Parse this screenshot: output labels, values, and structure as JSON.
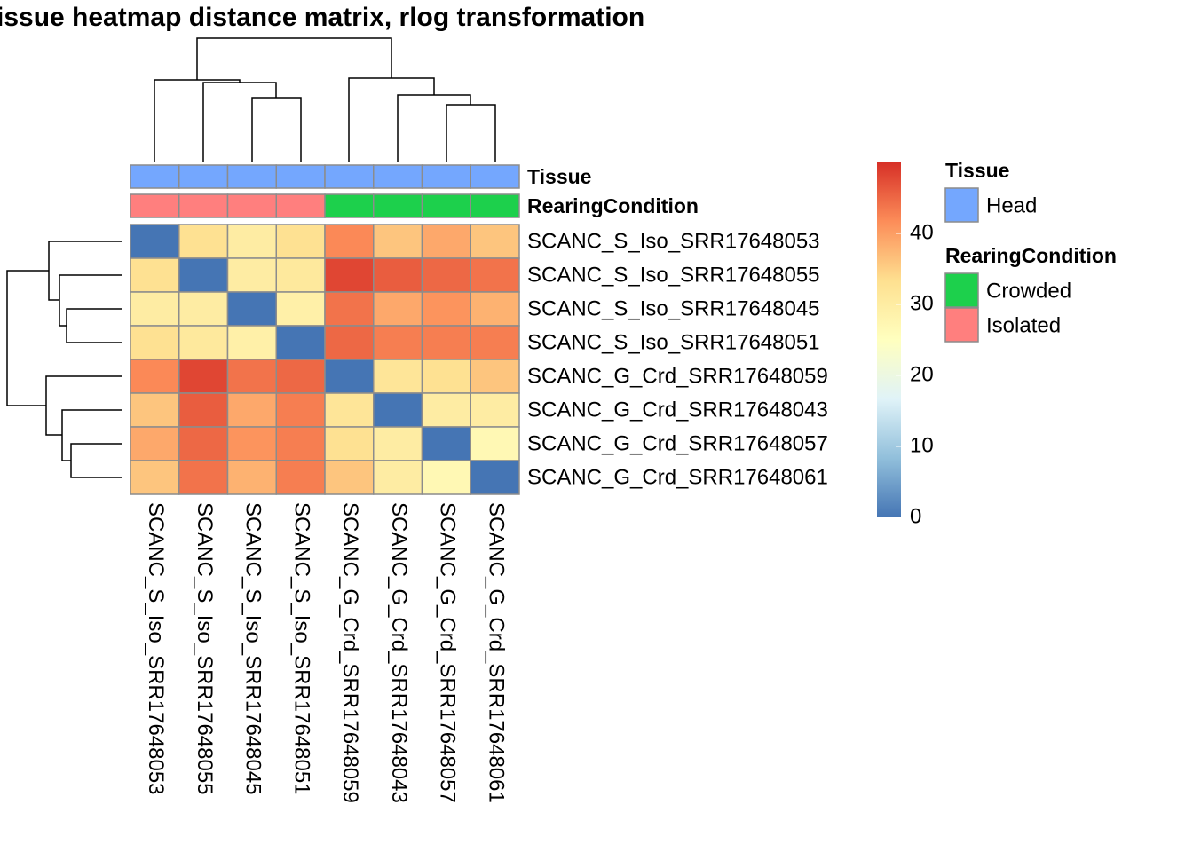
{
  "chart_data": {
    "type": "heatmap",
    "title": "issue heatmap distance matrix, rlog transformation",
    "rows": [
      "SCANC_S_Iso_SRR17648053",
      "SCANC_S_Iso_SRR17648055",
      "SCANC_S_Iso_SRR17648045",
      "SCANC_S_Iso_SRR17648051",
      "SCANC_G_Crd_SRR17648059",
      "SCANC_G_Crd_SRR17648043",
      "SCANC_G_Crd_SRR17648057",
      "SCANC_G_Crd_SRR17648061"
    ],
    "columns": [
      "SCANC_S_Iso_SRR17648053",
      "SCANC_S_Iso_SRR17648055",
      "SCANC_S_Iso_SRR17648045",
      "SCANC_S_Iso_SRR17648051",
      "SCANC_G_Crd_SRR17648059",
      "SCANC_G_Crd_SRR17648043",
      "SCANC_G_Crd_SRR17648057",
      "SCANC_G_Crd_SRR17648061"
    ],
    "matrix": [
      [
        0,
        33,
        30,
        33,
        42,
        36,
        39,
        36
      ],
      [
        33,
        0,
        30,
        31,
        48,
        46,
        45,
        44
      ],
      [
        30,
        30,
        0,
        29,
        44,
        39,
        41,
        38
      ],
      [
        33,
        31,
        29,
        0,
        45,
        43,
        43,
        43
      ],
      [
        42,
        48,
        44,
        45,
        0,
        32,
        33,
        36
      ],
      [
        36,
        46,
        39,
        43,
        32,
        0,
        30,
        30
      ],
      [
        39,
        45,
        41,
        43,
        33,
        30,
        0,
        27
      ],
      [
        36,
        44,
        38,
        43,
        36,
        30,
        27,
        0
      ]
    ],
    "colorscale": [
      "#4575B4",
      "#91BFDB",
      "#E0F3F8",
      "#FFFFBF",
      "#FEE090",
      "#FC8D59",
      "#D73027"
    ],
    "clim": [
      0,
      50
    ],
    "cticks": [
      0,
      10,
      20,
      30,
      40
    ],
    "annotations": [
      {
        "name": "Tissue",
        "levels": [
          {
            "name": "Head",
            "color": "#74A7FE"
          }
        ],
        "values": [
          "Head",
          "Head",
          "Head",
          "Head",
          "Head",
          "Head",
          "Head",
          "Head"
        ]
      },
      {
        "name": "RearingCondition",
        "levels": [
          {
            "name": "Crowded",
            "color": "#1DD04C"
          },
          {
            "name": "Isolated",
            "color": "#FF7F7E"
          }
        ],
        "values": [
          "Isolated",
          "Isolated",
          "Isolated",
          "Isolated",
          "Crowded",
          "Crowded",
          "Crowded",
          "Crowded"
        ]
      }
    ]
  }
}
